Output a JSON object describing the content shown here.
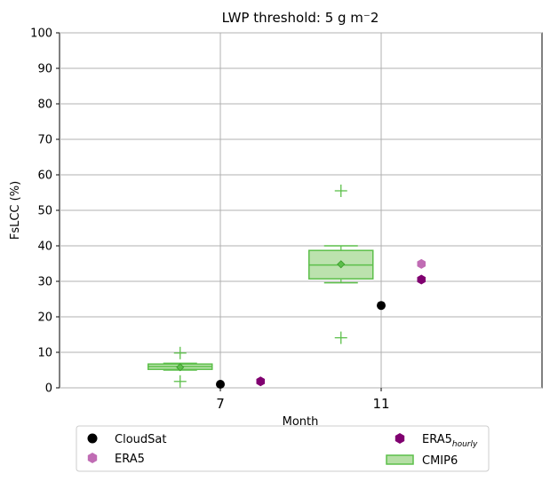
{
  "chart_data": {
    "type": "box",
    "title": "LWP threshold: 5 g m⁻2",
    "xlabel": "Month",
    "ylabel": "FsLCC (%)",
    "ylim": [
      0,
      100
    ],
    "yticks": [
      0,
      10,
      20,
      30,
      40,
      50,
      60,
      70,
      80,
      90,
      100
    ],
    "xlim": [
      3,
      15
    ],
    "xticks": [
      7,
      11
    ],
    "grid": true,
    "legend_position": "bottom",
    "colors": {
      "cloudsat": "#000000",
      "era5": "#c06cb4",
      "era5_hourly": "#800070",
      "cmip6_fill": "#b5dfa5",
      "cmip6_line": "#5cbf4a",
      "grid": "#b0b0b0"
    },
    "legend": [
      {
        "key": "cloudsat",
        "label": "CloudSat",
        "marker": "circle"
      },
      {
        "key": "era5_hourly",
        "label": "ERA5",
        "sub": "hourly",
        "marker": "hexagon"
      },
      {
        "key": "era5",
        "label": "ERA5",
        "marker": "hexagon"
      },
      {
        "key": "cmip6",
        "label": "CMIP6",
        "marker": "box"
      }
    ],
    "series": [
      {
        "key": "cloudsat",
        "name": "CloudSat",
        "points": [
          {
            "x": 7,
            "y": 1.0
          },
          {
            "x": 11,
            "y": 23.2
          }
        ]
      },
      {
        "key": "era5_hourly",
        "name": "ERA5 hourly",
        "points": [
          {
            "x": 8,
            "y": 1.8
          },
          {
            "x": 12,
            "y": 30.5
          }
        ]
      },
      {
        "key": "era5",
        "name": "ERA5",
        "points": [
          {
            "x": 12,
            "y": 34.9
          }
        ]
      }
    ],
    "boxes": [
      {
        "key": "cmip6",
        "x": 6,
        "q1": 5.2,
        "median": 6.0,
        "q3": 6.7,
        "mean": 5.8,
        "whisker_low": 5.0,
        "whisker_high": 6.9,
        "outliers": [
          1.8,
          9.8
        ]
      },
      {
        "key": "cmip6",
        "x": 10,
        "q1": 30.7,
        "median": 34.6,
        "q3": 38.7,
        "mean": 34.8,
        "whisker_low": 29.6,
        "whisker_high": 40.0,
        "outliers": [
          14.1,
          55.5
        ]
      }
    ]
  }
}
